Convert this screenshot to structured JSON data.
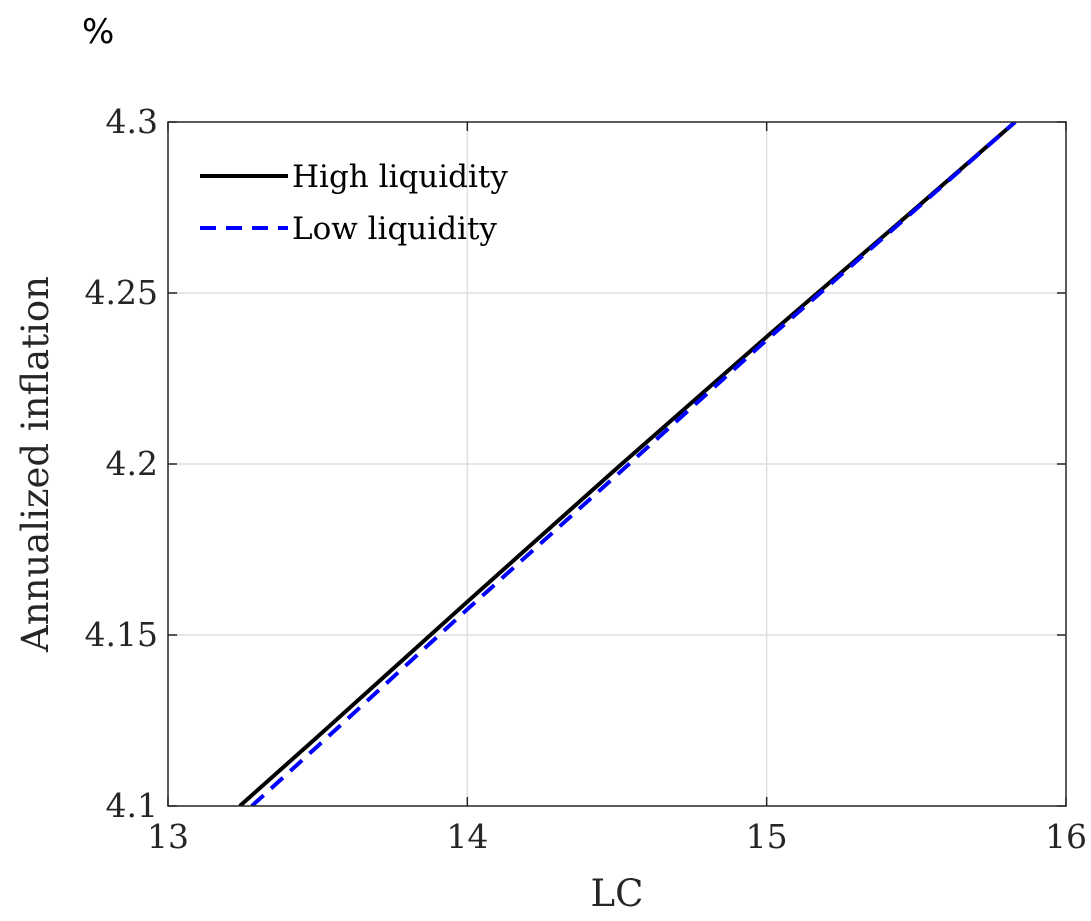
{
  "page": {
    "unit_label": "%"
  },
  "chart_data": {
    "type": "line",
    "title": "",
    "xlabel": "LC",
    "ylabel": "Annualized inflation",
    "xlim": [
      13,
      16
    ],
    "ylim": [
      4.1,
      4.3
    ],
    "xticks": [
      13,
      14,
      15,
      16
    ],
    "yticks": [
      4.1,
      4.15,
      4.2,
      4.25,
      4.3
    ],
    "xtick_labels": [
      "13",
      "14",
      "15",
      "16"
    ],
    "ytick_labels": [
      "4.1",
      "4.15",
      "4.2",
      "4.25",
      "4.3"
    ],
    "grid": true,
    "legend_position": "top-left",
    "series": [
      {
        "name": "High liquidity",
        "color": "#000000",
        "style": "solid",
        "x": [
          13.24,
          13.5,
          14.0,
          14.5,
          15.0,
          15.5,
          15.83
        ],
        "y": [
          4.1,
          4.1203,
          4.1597,
          4.1988,
          4.2372,
          4.2749,
          4.3
        ]
      },
      {
        "name": "Low liquidity",
        "color": "#0000ff",
        "style": "dashed",
        "x": [
          13.28,
          13.5,
          14.0,
          14.5,
          15.0,
          15.5,
          15.83
        ],
        "y": [
          4.1,
          4.1175,
          4.1575,
          4.1968,
          4.2363,
          4.2746,
          4.3
        ]
      }
    ]
  }
}
